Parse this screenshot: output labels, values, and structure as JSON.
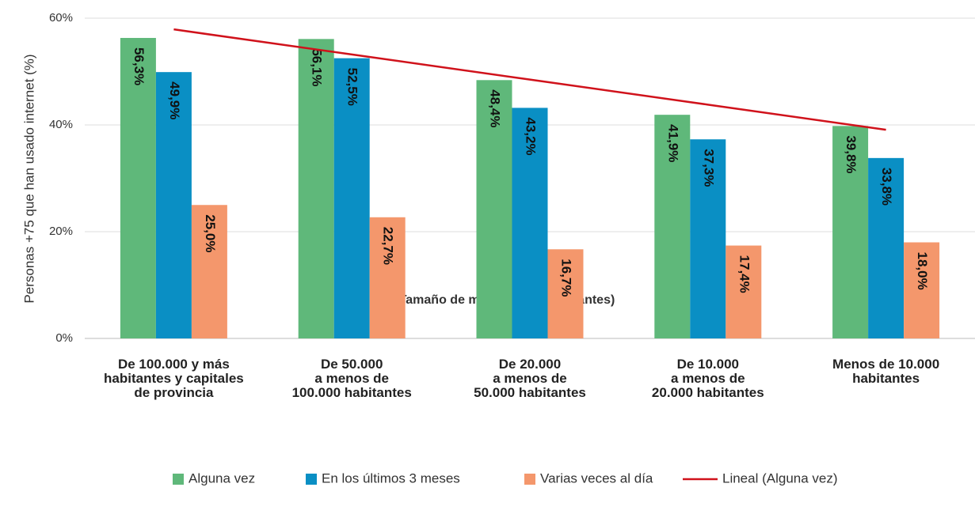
{
  "chart_data": {
    "type": "bar",
    "categories": [
      [
        "De 100.000 y más",
        "habitantes y capitales",
        "de provincia"
      ],
      [
        "De 50.000",
        "a menos de",
        "100.000 habitantes"
      ],
      [
        "De 20.000",
        "a menos de",
        "50.000 habitantes"
      ],
      [
        "De 10.000",
        "a menos de",
        "20.000 habitantes"
      ],
      [
        "Menos de 10.000",
        "habitantes"
      ]
    ],
    "series": [
      {
        "name": "Alguna vez",
        "color": "#5fb87a",
        "values": [
          56.3,
          56.1,
          48.4,
          41.9,
          39.8
        ],
        "value_labels": [
          "56,3%",
          "56,1%",
          "48,4%",
          "41,9%",
          "39,8%"
        ]
      },
      {
        "name": "En los últimos 3 meses",
        "color": "#0a8fc4",
        "values": [
          49.9,
          52.5,
          43.2,
          37.3,
          33.8
        ],
        "value_labels": [
          "49,9%",
          "52,5%",
          "43,2%",
          "37,3%",
          "33,8%"
        ]
      },
      {
        "name": "Varias veces al día",
        "color": "#f4976c",
        "values": [
          25.0,
          22.7,
          16.7,
          17.4,
          18.0
        ],
        "value_labels": [
          "25,0%",
          "22,7%",
          "16,7%",
          "17,4%",
          "18,0%"
        ]
      },
      {
        "name": "Lineal (Alguna vez)",
        "color": "#d0121b",
        "type": "line",
        "values": [
          57.9,
          53.2,
          48.5,
          43.8,
          39.1
        ]
      }
    ],
    "x_label": "Tamaño de municipio (n habitantes)",
    "y_label": "Personas +75 que han usado internet (%)",
    "ylim": [
      0,
      60
    ],
    "yticks": [
      {
        "value": 0,
        "label": "0%"
      },
      {
        "value": 20,
        "label": "20%"
      },
      {
        "value": 40,
        "label": "40%"
      },
      {
        "value": 60,
        "label": "60%"
      }
    ],
    "grid": true,
    "legend": "bottom"
  }
}
